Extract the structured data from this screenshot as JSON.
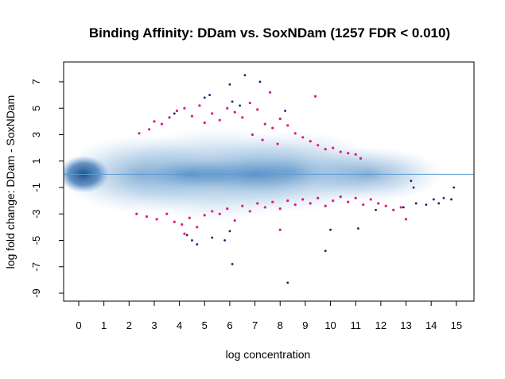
{
  "chart_data": {
    "type": "scatter",
    "title": "Binding Affinity: DDam vs. SoxNDam (1257 FDR < 0.010)",
    "xlabel": "log concentration",
    "ylabel": "log fold change: DDam - SoxNDam",
    "xlim": [
      -0.6,
      15.7
    ],
    "ylim": [
      -9.6,
      8.5
    ],
    "x_ticks": [
      0,
      1,
      2,
      3,
      4,
      5,
      6,
      7,
      8,
      9,
      10,
      11,
      12,
      13,
      14,
      15
    ],
    "y_ticks": [
      -9,
      -7,
      -5,
      -3,
      -1,
      1,
      3,
      5,
      7
    ],
    "reference_line_y": 0,
    "colors": {
      "significant": "#e8148c",
      "extreme": "#1a1a7a",
      "density": "#2a6db0",
      "reference_line": "#5b9bd5"
    },
    "series": [
      {
        "points_up": [
          [
            2.4,
            3.1
          ],
          [
            2.8,
            3.4
          ],
          [
            3.0,
            4.0
          ],
          [
            3.3,
            3.8
          ],
          [
            3.6,
            4.3
          ],
          [
            3.9,
            4.8
          ],
          [
            4.2,
            5.0
          ],
          [
            4.5,
            4.4
          ],
          [
            4.8,
            5.2
          ],
          [
            5.0,
            3.9
          ],
          [
            5.3,
            4.6
          ],
          [
            5.6,
            4.1
          ],
          [
            5.9,
            5.0
          ],
          [
            6.2,
            4.7
          ],
          [
            6.5,
            4.3
          ],
          [
            6.8,
            5.4
          ],
          [
            7.1,
            4.9
          ],
          [
            7.4,
            3.8
          ],
          [
            7.7,
            3.5
          ],
          [
            8.0,
            4.2
          ],
          [
            8.3,
            3.7
          ],
          [
            8.6,
            3.1
          ],
          [
            8.9,
            2.8
          ],
          [
            9.2,
            2.5
          ],
          [
            9.5,
            2.2
          ],
          [
            9.8,
            1.9
          ],
          [
            10.1,
            2.0
          ],
          [
            10.4,
            1.7
          ],
          [
            10.7,
            1.6
          ],
          [
            11.0,
            1.5
          ],
          [
            11.2,
            1.2
          ],
          [
            7.6,
            6.2
          ],
          [
            9.4,
            5.9
          ],
          [
            6.9,
            3.0
          ],
          [
            7.3,
            2.6
          ],
          [
            7.9,
            2.3
          ]
        ],
        "points_down": [
          [
            2.3,
            -3.0
          ],
          [
            2.7,
            -3.2
          ],
          [
            3.1,
            -3.4
          ],
          [
            3.5,
            -3.0
          ],
          [
            3.8,
            -3.6
          ],
          [
            4.1,
            -3.8
          ],
          [
            4.4,
            -3.3
          ],
          [
            4.7,
            -4.0
          ],
          [
            5.0,
            -3.1
          ],
          [
            5.3,
            -2.8
          ],
          [
            5.6,
            -3.0
          ],
          [
            5.9,
            -2.6
          ],
          [
            6.2,
            -3.5
          ],
          [
            6.5,
            -2.4
          ],
          [
            6.8,
            -2.8
          ],
          [
            7.1,
            -2.2
          ],
          [
            7.4,
            -2.5
          ],
          [
            7.7,
            -2.1
          ],
          [
            8.0,
            -2.6
          ],
          [
            8.3,
            -2.0
          ],
          [
            8.6,
            -2.3
          ],
          [
            8.9,
            -1.9
          ],
          [
            9.2,
            -2.2
          ],
          [
            9.5,
            -1.8
          ],
          [
            9.8,
            -2.4
          ],
          [
            10.1,
            -2.0
          ],
          [
            10.4,
            -1.7
          ],
          [
            10.7,
            -2.1
          ],
          [
            11.0,
            -1.8
          ],
          [
            11.3,
            -2.3
          ],
          [
            11.6,
            -1.9
          ],
          [
            11.9,
            -2.2
          ],
          [
            12.2,
            -2.4
          ],
          [
            12.5,
            -2.7
          ],
          [
            12.8,
            -2.5
          ],
          [
            13.0,
            -3.4
          ],
          [
            4.2,
            -4.5
          ],
          [
            8.0,
            -4.2
          ]
        ]
      },
      {
        "points": [
          [
            6.6,
            7.5
          ],
          [
            7.2,
            7.0
          ],
          [
            6.0,
            6.8
          ],
          [
            5.2,
            6.0
          ],
          [
            5.0,
            5.8
          ],
          [
            6.1,
            5.5
          ],
          [
            6.4,
            5.2
          ],
          [
            8.2,
            4.8
          ],
          [
            3.8,
            4.6
          ],
          [
            4.3,
            -4.6
          ],
          [
            4.5,
            -5.0
          ],
          [
            4.7,
            -5.3
          ],
          [
            5.3,
            -4.8
          ],
          [
            6.0,
            -4.3
          ],
          [
            5.8,
            -5.0
          ],
          [
            6.1,
            -6.8
          ],
          [
            8.3,
            -8.2
          ],
          [
            9.8,
            -5.8
          ],
          [
            10.0,
            -4.2
          ],
          [
            11.1,
            -4.1
          ],
          [
            13.2,
            -0.5
          ],
          [
            13.3,
            -1.0
          ],
          [
            13.8,
            -2.3
          ],
          [
            14.1,
            -1.9
          ],
          [
            14.3,
            -2.2
          ],
          [
            14.5,
            -1.8
          ],
          [
            14.8,
            -1.9
          ],
          [
            14.9,
            -1.0
          ],
          [
            13.4,
            -2.2
          ],
          [
            12.9,
            -2.5
          ],
          [
            11.8,
            -2.7
          ]
        ]
      }
    ]
  }
}
